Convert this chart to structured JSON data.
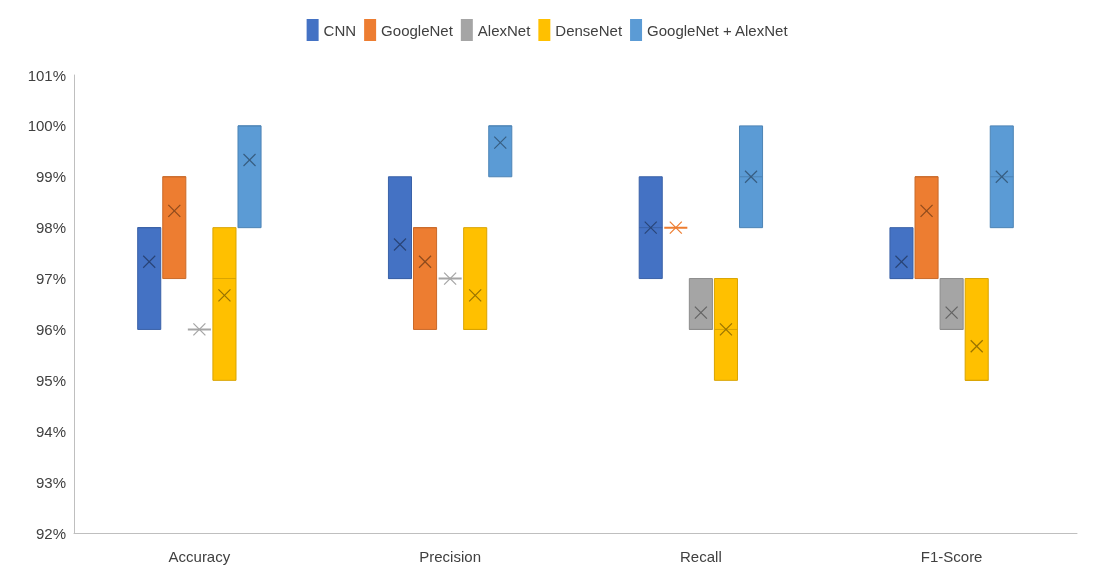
{
  "chart_data": {
    "type": "box",
    "categories": [
      "Accuracy",
      "Precision",
      "Recall",
      "F1-Score"
    ],
    "series": [
      {
        "name": "CNN",
        "color": "#4472c4",
        "boxes": [
          {
            "low": 96,
            "q1": 96,
            "median": 98,
            "q3": 98,
            "high": 98,
            "mean": 97.33
          },
          {
            "low": 97,
            "q1": 97,
            "median": 97,
            "q3": 99,
            "high": 99,
            "mean": 97.67
          },
          {
            "low": 97,
            "q1": 97,
            "median": 98,
            "q3": 99,
            "high": 99,
            "mean": 98
          },
          {
            "low": 97,
            "q1": 97,
            "median": 97,
            "q3": 98,
            "high": 98,
            "mean": 97.33
          }
        ]
      },
      {
        "name": "GoogleNet",
        "color": "#ed7d31",
        "boxes": [
          {
            "low": 97,
            "q1": 97,
            "median": 99,
            "q3": 99,
            "high": 99,
            "mean": 98.33
          },
          {
            "low": 96,
            "q1": 96,
            "median": 98,
            "q3": 98,
            "high": 98,
            "mean": 97.33
          },
          {
            "low": 98,
            "q1": 98,
            "median": 98,
            "q3": 98,
            "high": 98,
            "mean": 98
          },
          {
            "low": 97,
            "q1": 97,
            "median": 99,
            "q3": 99,
            "high": 99,
            "mean": 98.33
          }
        ]
      },
      {
        "name": "AlexNet",
        "color": "#a5a5a5",
        "boxes": [
          {
            "low": 96,
            "q1": 96,
            "median": 96,
            "q3": 96,
            "high": 96,
            "mean": 96
          },
          {
            "low": 97,
            "q1": 97,
            "median": 97,
            "q3": 97,
            "high": 97,
            "mean": 97
          },
          {
            "low": 96,
            "q1": 96,
            "median": 96,
            "q3": 97,
            "high": 97,
            "mean": 96.33
          },
          {
            "low": 96,
            "q1": 96,
            "median": 96,
            "q3": 97,
            "high": 97,
            "mean": 96.33
          }
        ]
      },
      {
        "name": "DenseNet",
        "color": "#ffc000",
        "boxes": [
          {
            "low": 95,
            "q1": 95,
            "median": 97,
            "q3": 98,
            "high": 98,
            "mean": 96.67
          },
          {
            "low": 96,
            "q1": 96,
            "median": 96,
            "q3": 98,
            "high": 98,
            "mean": 96.67
          },
          {
            "low": 95,
            "q1": 95,
            "median": 96,
            "q3": 97,
            "high": 97,
            "mean": 96
          },
          {
            "low": 95,
            "q1": 95,
            "median": 95,
            "q3": 97,
            "high": 97,
            "mean": 95.67
          }
        ]
      },
      {
        "name": "GoogleNet + AlexNet",
        "color": "#5b9bd5",
        "boxes": [
          {
            "low": 98,
            "q1": 98,
            "median": 100,
            "q3": 100,
            "high": 100,
            "mean": 99.33
          },
          {
            "low": 99,
            "q1": 99,
            "median": 100,
            "q3": 100,
            "high": 100,
            "mean": 99.67
          },
          {
            "low": 98,
            "q1": 98,
            "median": 99,
            "q3": 100,
            "high": 100,
            "mean": 99
          },
          {
            "low": 98,
            "q1": 98,
            "median": 99,
            "q3": 100,
            "high": 100,
            "mean": 99
          }
        ]
      }
    ],
    "ylim": [
      92,
      101
    ],
    "yticks": [
      {
        "value": 92,
        "label": "92%"
      },
      {
        "value": 93,
        "label": "93%"
      },
      {
        "value": 94,
        "label": "94%"
      },
      {
        "value": 95,
        "label": "95%"
      },
      {
        "value": 96,
        "label": "96%"
      },
      {
        "value": 97,
        "label": "97%"
      },
      {
        "value": 98,
        "label": "98%"
      },
      {
        "value": 99,
        "label": "99%"
      },
      {
        "value": 100,
        "label": "100%"
      },
      {
        "value": 101,
        "label": "101%"
      }
    ],
    "grid": false,
    "legend": "top",
    "marker": "cross"
  }
}
